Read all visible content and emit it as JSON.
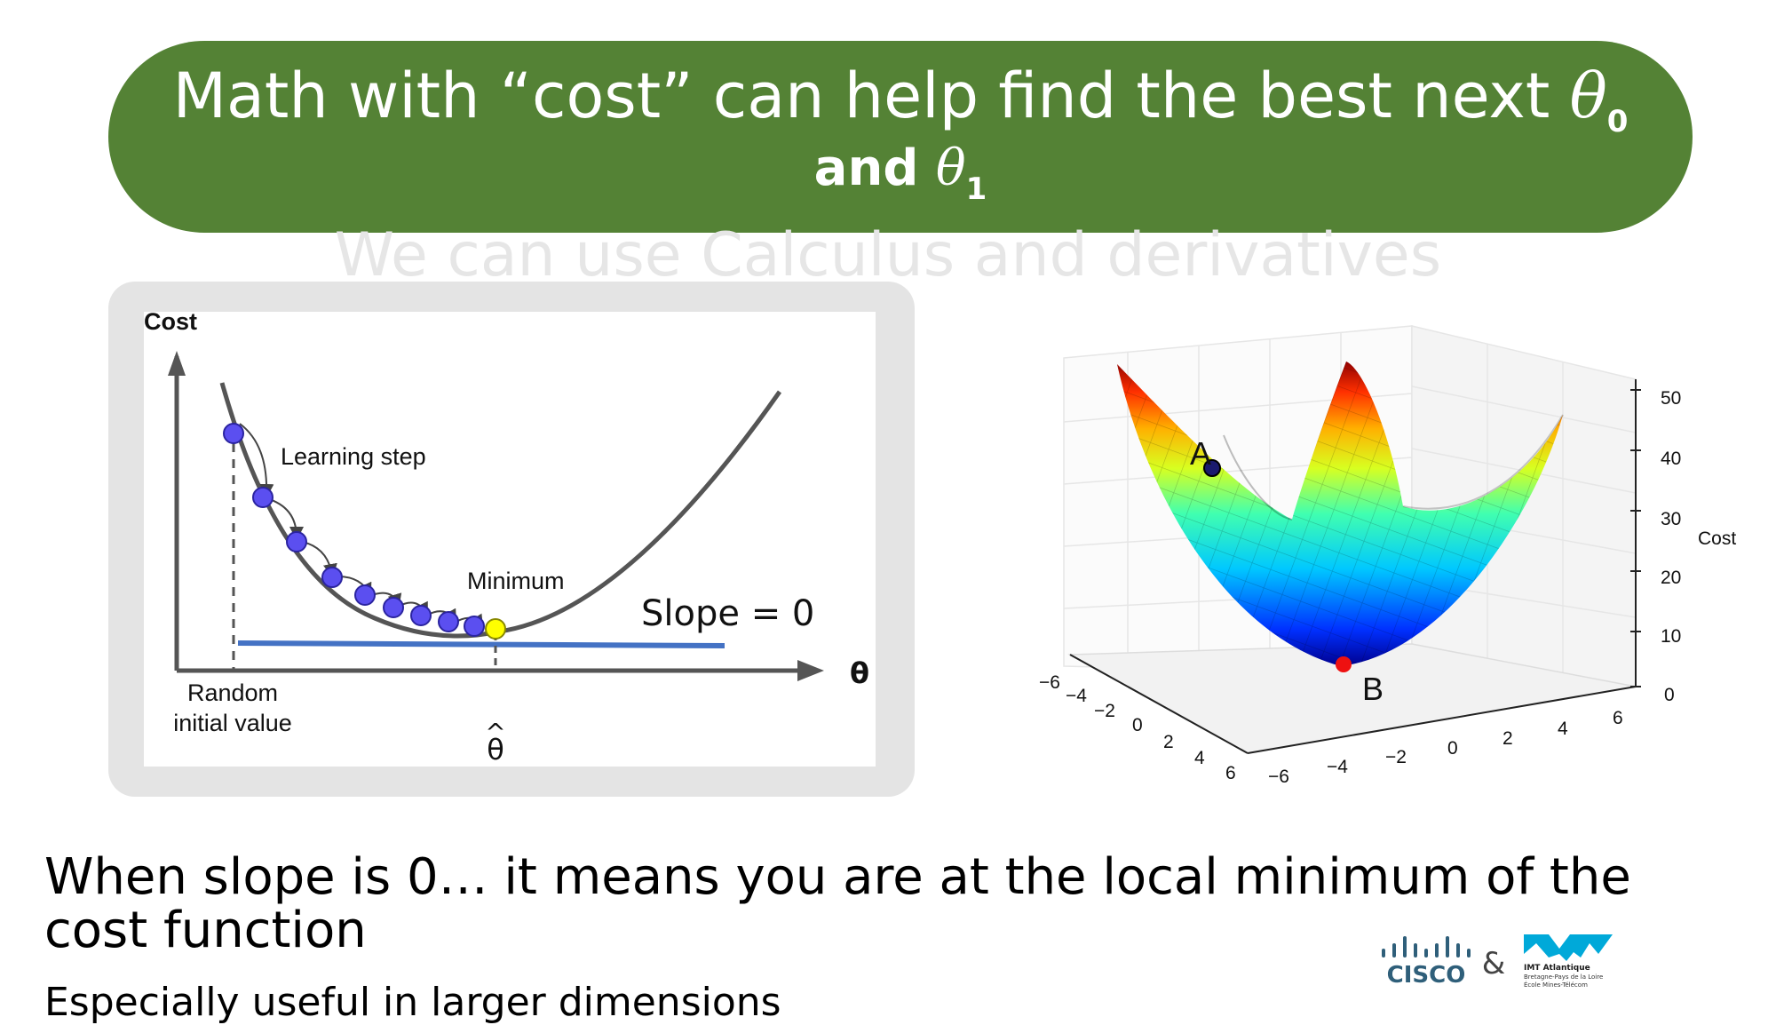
{
  "slide": {
    "title_line1": "Math with “cost” can help find the best next",
    "title_theta": "θ",
    "title_sub0": "0",
    "title_line2_prefix": "and",
    "title_sub1": "1",
    "subtitle": "We can use Calculus and derivatives",
    "body_line1": "When slope is 0… it means you are at the local minimum of the cost function",
    "body_line2": "Especially useful in larger dimensions"
  },
  "diagram_2d": {
    "y_label": "Cost",
    "x_label": "θ",
    "learning_step_label": "Learning step",
    "minimum_label": "Minimum",
    "slope_label": "Slope = 0",
    "random_label_line1": "Random",
    "random_label_line2": "initial value",
    "theta_hat_label": "θ",
    "theta_hat_mark": "^",
    "colors": {
      "step_point": "#5b4ff0",
      "minimum_point": "#ffff00",
      "curve": "#555555",
      "tangent": "#4472c4"
    }
  },
  "surface_3d": {
    "point_a_label": "A",
    "point_b_label": "B",
    "z_axis_label": "Cost",
    "z_ticks": [
      "0",
      "10",
      "20",
      "30",
      "40",
      "50"
    ],
    "x_ticks": [
      "−6",
      "−4",
      "−2",
      "0",
      "2",
      "4",
      "6"
    ],
    "y_ticks": [
      "−6",
      "−4",
      "−2",
      "0",
      "2",
      "4",
      "6"
    ],
    "colormap": "jet"
  },
  "logos": {
    "cisco_text": "CISCO",
    "ampersand": "&",
    "imt_name": "IMT Atlantique",
    "imt_line2": "Bretagne-Pays de la Loire",
    "imt_line3": "École Mines-Télécom"
  }
}
